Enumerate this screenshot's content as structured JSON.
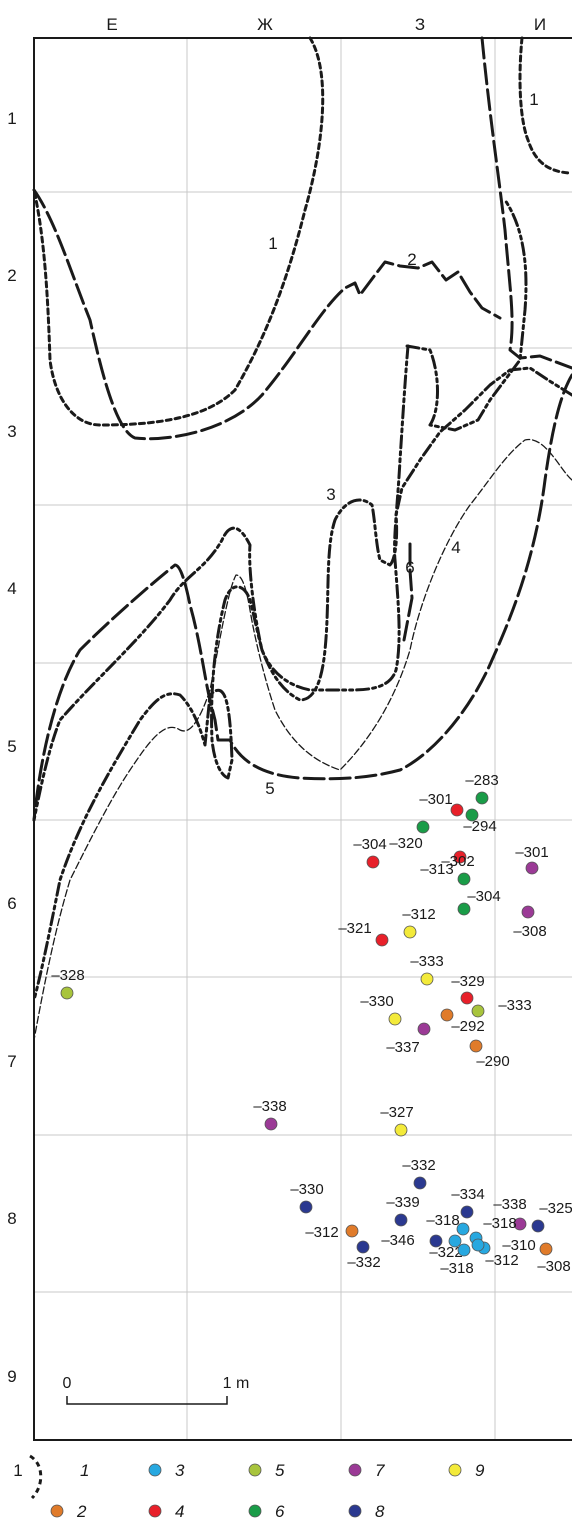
{
  "columns": [
    "Е",
    "Ж",
    "З",
    "И"
  ],
  "rows": [
    "1",
    "2",
    "3",
    "4",
    "5",
    "6",
    "7",
    "8",
    "9"
  ],
  "boundary_labels": [
    "1",
    "1",
    "2",
    "3",
    "4",
    "5",
    "6"
  ],
  "scale": {
    "start": "0",
    "end": "1 m"
  },
  "colors": {
    "1": "#f5f5f5",
    "2": "#e07b2a",
    "3": "#27a8e0",
    "4": "#e8202a",
    "5": "#a8c43c",
    "6": "#1a9c48",
    "7": "#9b3a96",
    "8": "#2b3990",
    "9": "#f3ea3a"
  },
  "points": [
    {
      "depth": "–283",
      "cls": "6"
    },
    {
      "depth": "–301",
      "cls": "4"
    },
    {
      "depth": "–294",
      "cls": "6"
    },
    {
      "depth": "–320",
      "cls": "6"
    },
    {
      "depth": "–313",
      "cls": "4"
    },
    {
      "depth": "–304",
      "cls": "4"
    },
    {
      "depth": "–302",
      "cls": "6"
    },
    {
      "depth": "–304",
      "cls": "6"
    },
    {
      "depth": "–301",
      "cls": "7"
    },
    {
      "depth": "–308",
      "cls": "7"
    },
    {
      "depth": "–312",
      "cls": "9"
    },
    {
      "depth": "–321",
      "cls": "4"
    },
    {
      "depth": "–328",
      "cls": "5"
    },
    {
      "depth": "–333",
      "cls": "9"
    },
    {
      "depth": "–329",
      "cls": "4"
    },
    {
      "depth": "–330",
      "cls": "9"
    },
    {
      "depth": "–333",
      "cls": "5"
    },
    {
      "depth": "–292",
      "cls": "2"
    },
    {
      "depth": "–337",
      "cls": "7"
    },
    {
      "depth": "–290",
      "cls": "2"
    },
    {
      "depth": "–338",
      "cls": "7"
    },
    {
      "depth": "–327",
      "cls": "9"
    },
    {
      "depth": "–332",
      "cls": "8"
    },
    {
      "depth": "–330",
      "cls": "8"
    },
    {
      "depth": "–339",
      "cls": "8"
    },
    {
      "depth": "–334",
      "cls": "8"
    },
    {
      "depth": "–338",
      "cls": "7"
    },
    {
      "depth": "–325",
      "cls": "8"
    },
    {
      "depth": "–312",
      "cls": "2"
    },
    {
      "depth": "–318",
      "cls": "3"
    },
    {
      "depth": "–318",
      "cls": "3"
    },
    {
      "depth": "–346",
      "cls": "8"
    },
    {
      "depth": "–310",
      "cls": "3"
    },
    {
      "depth": "–322",
      "cls": "3"
    },
    {
      "depth": "–332",
      "cls": "8"
    },
    {
      "depth": "–318",
      "cls": "3"
    },
    {
      "depth": "–312",
      "cls": "3"
    },
    {
      "depth": "–308",
      "cls": "2"
    }
  ],
  "legend": [
    {
      "num": "1",
      "label": "1"
    },
    {
      "num": "3",
      "label": "3"
    },
    {
      "num": "5",
      "label": "5"
    },
    {
      "num": "7",
      "label": "7"
    },
    {
      "num": "9",
      "label": "9"
    },
    {
      "num": "2",
      "label": "2"
    },
    {
      "num": "4",
      "label": "4"
    },
    {
      "num": "6",
      "label": "6"
    },
    {
      "num": "8",
      "label": "8"
    }
  ]
}
